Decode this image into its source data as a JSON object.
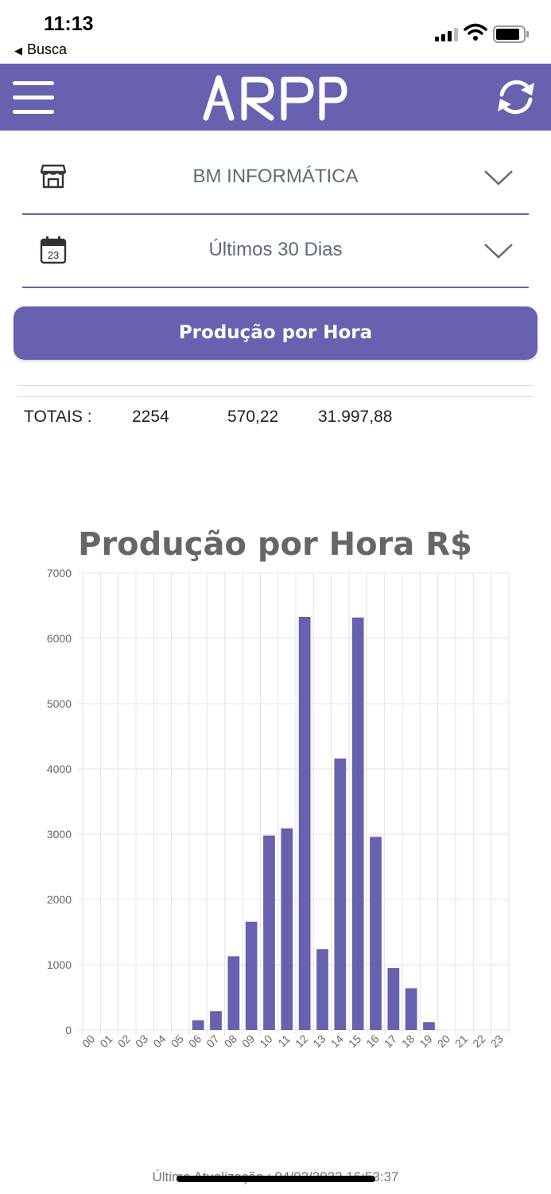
{
  "status_bar": {
    "time": "11:13",
    "back_label": "Busca"
  },
  "header": {
    "logo_text": "ARPP",
    "accent_color": "#6761b0"
  },
  "filters": {
    "store": {
      "value": "BM INFORMÁTICA",
      "icon": "store-icon"
    },
    "period": {
      "value": "Últimos 30 Dias",
      "icon": "calendar-icon",
      "icon_day": "23"
    }
  },
  "action_button": {
    "label": "Produção por Hora"
  },
  "totals": {
    "label": "TOTAIS :",
    "quantity": "2254",
    "value2": "570,22",
    "value3": "31.997,88"
  },
  "chart_data": {
    "type": "bar",
    "title": "Produção por Hora R$",
    "categories": [
      "00",
      "01",
      "02",
      "03",
      "04",
      "05",
      "06",
      "07",
      "08",
      "09",
      "10",
      "11",
      "12",
      "13",
      "14",
      "15",
      "16",
      "17",
      "18",
      "19",
      "20",
      "21",
      "22",
      "23"
    ],
    "values": [
      0,
      0,
      0,
      0,
      0,
      0,
      150,
      290,
      1130,
      1660,
      2980,
      3090,
      6330,
      1240,
      4160,
      6320,
      2960,
      950,
      640,
      120,
      0,
      0,
      0,
      0
    ],
    "ylim": [
      0,
      7000
    ],
    "yticks": [
      0,
      1000,
      2000,
      3000,
      4000,
      5000,
      6000,
      7000
    ],
    "grid": true,
    "bar_color": "#6761b0"
  },
  "footer": {
    "last_update": "Última Atualização : 04/02/2022 16:53:37"
  }
}
